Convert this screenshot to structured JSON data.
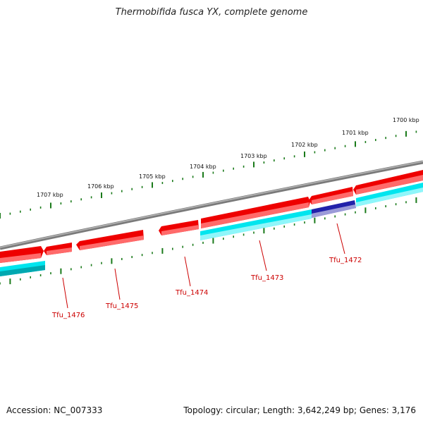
{
  "title": "Thermobifida fusca YX, complete genome",
  "accession": "Accession: NC_007333",
  "summary": "Topology: circular; Length: 3,642,249 bp; Genes: 3,176",
  "colors": {
    "backbone": "#8a8a8a",
    "gene_forward": "#ee0000",
    "gene_reverse": "#00e5ee",
    "gene_reverse_dark": "#00a8b0",
    "gene_highlight": "#1c1c9a",
    "tick": "#1a7a1a",
    "label": "#cc0000"
  },
  "scale_labels": [
    "1700 kbp",
    "1701 kbp",
    "1702 kbp",
    "1703 kbp",
    "1704 kbp",
    "1705 kbp",
    "1706 kbp",
    "1707 kbp"
  ],
  "gene_labels": [
    "Tfu_1472",
    "Tfu_1473",
    "Tfu_1474",
    "Tfu_1475",
    "Tfu_1476"
  ]
}
